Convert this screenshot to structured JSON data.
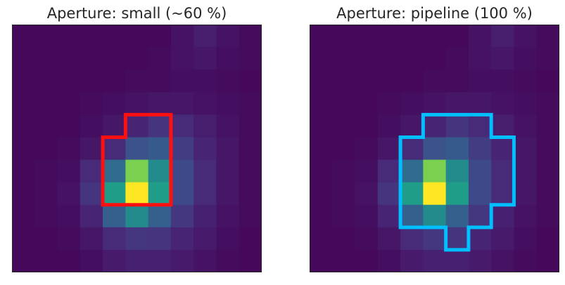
{
  "chart_data": [
    {
      "type": "heatmap",
      "title": "Aperture: small (~60 %)",
      "xlabel": "",
      "ylabel": "",
      "colormap": "viridis",
      "grid": false,
      "z": [
        [
          0.02,
          0.02,
          0.02,
          0.02,
          0.02,
          0.02,
          0.02,
          0.05,
          0.08,
          0.05,
          0.03
        ],
        [
          0.02,
          0.02,
          0.02,
          0.02,
          0.02,
          0.02,
          0.03,
          0.05,
          0.06,
          0.04,
          0.03
        ],
        [
          0.02,
          0.02,
          0.02,
          0.02,
          0.02,
          0.03,
          0.03,
          0.04,
          0.04,
          0.03,
          0.02
        ],
        [
          0.02,
          0.02,
          0.02,
          0.03,
          0.04,
          0.05,
          0.06,
          0.06,
          0.05,
          0.04,
          0.03
        ],
        [
          0.02,
          0.02,
          0.02,
          0.04,
          0.06,
          0.1,
          0.15,
          0.12,
          0.08,
          0.05,
          0.03
        ],
        [
          0.02,
          0.02,
          0.03,
          0.06,
          0.12,
          0.25,
          0.28,
          0.18,
          0.1,
          0.06,
          0.03
        ],
        [
          0.02,
          0.03,
          0.04,
          0.12,
          0.35,
          0.8,
          0.48,
          0.22,
          0.12,
          0.06,
          0.03
        ],
        [
          0.02,
          0.03,
          0.05,
          0.15,
          0.55,
          1.0,
          0.55,
          0.22,
          0.12,
          0.06,
          0.03
        ],
        [
          0.02,
          0.03,
          0.04,
          0.1,
          0.3,
          0.48,
          0.3,
          0.16,
          0.09,
          0.05,
          0.03
        ],
        [
          0.02,
          0.02,
          0.03,
          0.06,
          0.12,
          0.16,
          0.15,
          0.1,
          0.07,
          0.04,
          0.02
        ],
        [
          0.02,
          0.02,
          0.02,
          0.04,
          0.07,
          0.09,
          0.09,
          0.07,
          0.05,
          0.03,
          0.02
        ]
      ],
      "aperture": {
        "color": "#ff1010",
        "cells": [
          [
            4,
            5
          ],
          [
            4,
            6
          ],
          [
            5,
            4
          ],
          [
            5,
            5
          ],
          [
            5,
            6
          ],
          [
            6,
            4
          ],
          [
            6,
            5
          ],
          [
            6,
            6
          ],
          [
            7,
            4
          ],
          [
            7,
            5
          ],
          [
            7,
            6
          ]
        ]
      }
    },
    {
      "type": "heatmap",
      "title": "Aperture: pipeline (100 %)",
      "xlabel": "",
      "ylabel": "",
      "colormap": "viridis",
      "grid": false,
      "z": [
        [
          0.02,
          0.02,
          0.02,
          0.02,
          0.02,
          0.02,
          0.02,
          0.05,
          0.08,
          0.05,
          0.03
        ],
        [
          0.02,
          0.02,
          0.02,
          0.02,
          0.02,
          0.02,
          0.03,
          0.05,
          0.06,
          0.04,
          0.03
        ],
        [
          0.02,
          0.02,
          0.02,
          0.02,
          0.02,
          0.03,
          0.03,
          0.04,
          0.04,
          0.03,
          0.02
        ],
        [
          0.02,
          0.02,
          0.02,
          0.03,
          0.04,
          0.05,
          0.06,
          0.06,
          0.05,
          0.04,
          0.03
        ],
        [
          0.02,
          0.02,
          0.02,
          0.04,
          0.06,
          0.1,
          0.15,
          0.12,
          0.08,
          0.05,
          0.03
        ],
        [
          0.02,
          0.02,
          0.03,
          0.06,
          0.12,
          0.25,
          0.28,
          0.18,
          0.1,
          0.06,
          0.03
        ],
        [
          0.02,
          0.03,
          0.04,
          0.12,
          0.35,
          0.8,
          0.48,
          0.22,
          0.12,
          0.06,
          0.03
        ],
        [
          0.02,
          0.03,
          0.05,
          0.15,
          0.55,
          1.0,
          0.55,
          0.22,
          0.12,
          0.06,
          0.03
        ],
        [
          0.02,
          0.03,
          0.04,
          0.1,
          0.3,
          0.48,
          0.3,
          0.16,
          0.09,
          0.05,
          0.03
        ],
        [
          0.02,
          0.02,
          0.03,
          0.06,
          0.12,
          0.16,
          0.15,
          0.1,
          0.07,
          0.04,
          0.02
        ],
        [
          0.02,
          0.02,
          0.02,
          0.04,
          0.07,
          0.09,
          0.09,
          0.07,
          0.05,
          0.03,
          0.02
        ]
      ],
      "aperture": {
        "color": "#00bfff",
        "cells": [
          [
            4,
            5
          ],
          [
            4,
            6
          ],
          [
            4,
            7
          ],
          [
            5,
            4
          ],
          [
            5,
            5
          ],
          [
            5,
            6
          ],
          [
            5,
            7
          ],
          [
            5,
            8
          ],
          [
            6,
            4
          ],
          [
            6,
            5
          ],
          [
            6,
            6
          ],
          [
            6,
            7
          ],
          [
            6,
            8
          ],
          [
            7,
            4
          ],
          [
            7,
            5
          ],
          [
            7,
            6
          ],
          [
            7,
            7
          ],
          [
            7,
            8
          ],
          [
            8,
            4
          ],
          [
            8,
            5
          ],
          [
            8,
            6
          ],
          [
            8,
            7
          ],
          [
            9,
            6
          ]
        ]
      }
    }
  ]
}
